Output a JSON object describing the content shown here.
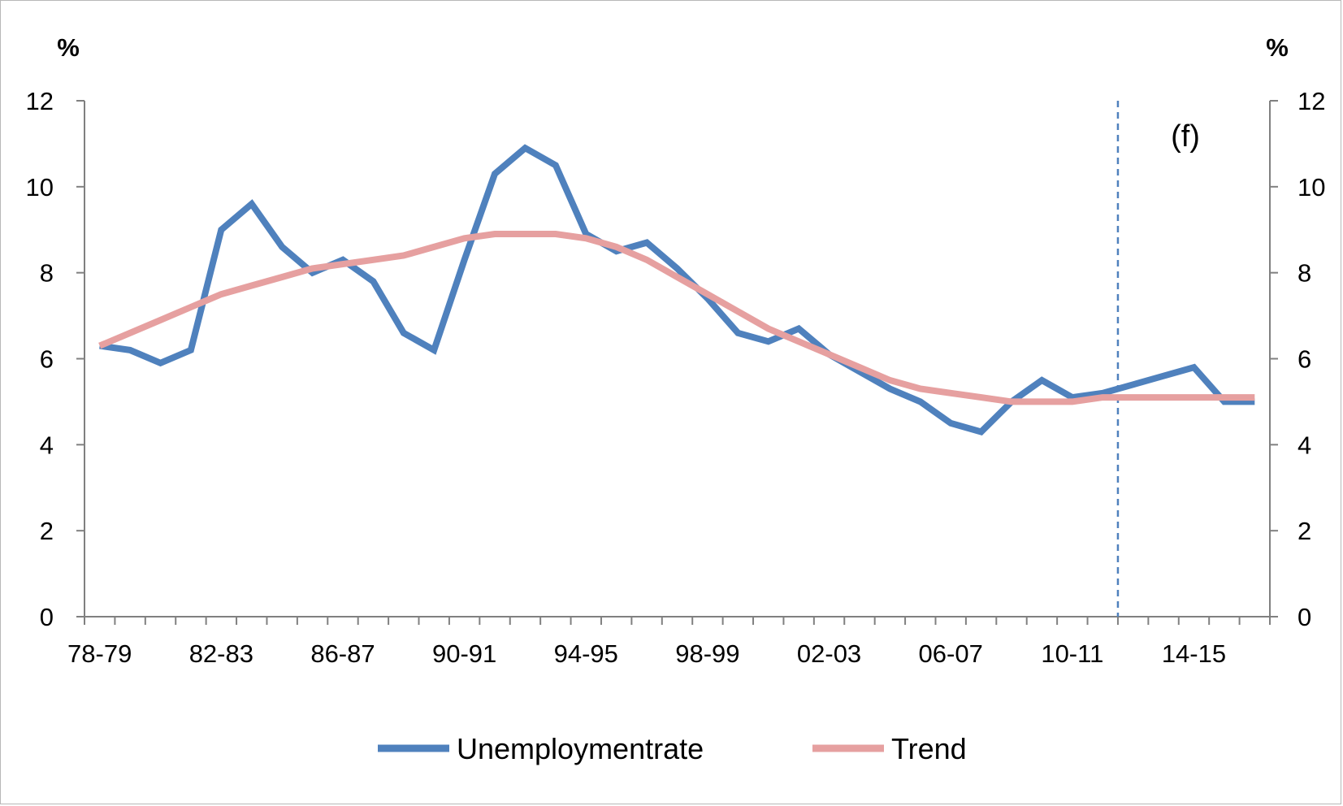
{
  "chart_data": {
    "type": "line",
    "categories": [
      "78-79",
      "79-80",
      "80-81",
      "81-82",
      "82-83",
      "83-84",
      "84-85",
      "85-86",
      "86-87",
      "87-88",
      "88-89",
      "89-90",
      "90-91",
      "91-92",
      "92-93",
      "93-94",
      "94-95",
      "95-96",
      "96-97",
      "97-98",
      "98-99",
      "99-00",
      "00-01",
      "01-02",
      "02-03",
      "03-04",
      "04-05",
      "05-06",
      "06-07",
      "07-08",
      "08-09",
      "09-10",
      "10-11",
      "11-12",
      "12-13",
      "13-14",
      "14-15",
      "15-16",
      "16-17"
    ],
    "x_tick_labels": [
      "78-79",
      "82-83",
      "86-87",
      "90-91",
      "94-95",
      "98-99",
      "02-03",
      "06-07",
      "10-11",
      "14-15"
    ],
    "series": [
      {
        "name": "Unemploymentrate",
        "color": "#4F81BD",
        "values": [
          6.3,
          6.2,
          5.9,
          6.2,
          9.0,
          9.6,
          8.6,
          8.0,
          8.3,
          7.8,
          6.6,
          6.2,
          8.3,
          10.3,
          10.9,
          10.5,
          8.9,
          8.5,
          8.7,
          8.1,
          7.4,
          6.6,
          6.4,
          6.7,
          6.1,
          5.7,
          5.3,
          5.0,
          4.5,
          4.3,
          5.0,
          5.5,
          5.1,
          5.2,
          5.4,
          5.6,
          5.8,
          5.0,
          5.0
        ]
      },
      {
        "name": "Trend",
        "color": "#E6A0A0",
        "values": [
          6.3,
          6.6,
          6.9,
          7.2,
          7.5,
          7.7,
          7.9,
          8.1,
          8.2,
          8.3,
          8.4,
          8.6,
          8.8,
          8.9,
          8.9,
          8.9,
          8.8,
          8.6,
          8.3,
          7.9,
          7.5,
          7.1,
          6.7,
          6.4,
          6.1,
          5.8,
          5.5,
          5.3,
          5.2,
          5.1,
          5.0,
          5.0,
          5.0,
          5.1,
          5.1,
          5.1,
          5.1,
          5.1,
          5.1
        ]
      }
    ],
    "ylim": [
      0,
      12
    ],
    "y_ticks": [
      0,
      2,
      4,
      6,
      8,
      10,
      12
    ],
    "y_tick_labels": [
      "0",
      "2",
      "4",
      "6",
      "8",
      "10",
      "12"
    ],
    "left_unit": "%",
    "right_unit": "%",
    "annotation": "(f)",
    "forecast_marker_after": "11-12",
    "legend_position": "bottom",
    "grid": false
  }
}
